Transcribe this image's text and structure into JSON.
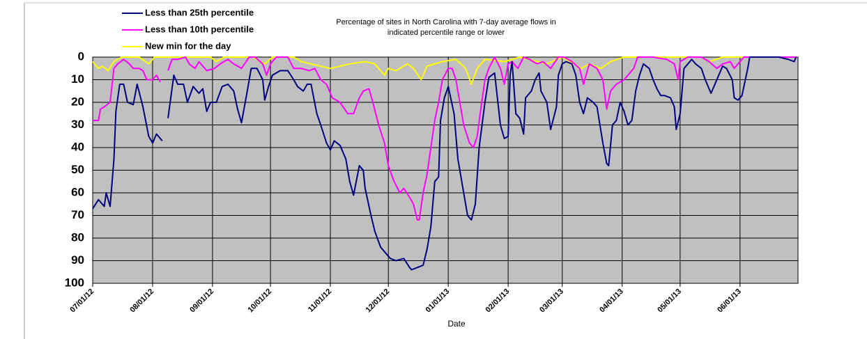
{
  "chart_data": {
    "type": "line",
    "title": [
      "Percentage of sites in North Carolina  with 7-day average  flows in",
      "indicated percentile range or lower"
    ],
    "x_label": "Date",
    "xlim": [
      "07/01/12",
      "07/01/13"
    ],
    "xticks": [
      "07/01/12",
      "08/01/12",
      "09/01/12",
      "10/01/12",
      "11/01/12",
      "12/01/12",
      "01/01/13",
      "02/01/13",
      "03/01/13",
      "04/01/13",
      "05/01/13",
      "06/01/13"
    ],
    "ylim": [
      0,
      100
    ],
    "y_reversed": true,
    "yticks": [
      0,
      10,
      20,
      30,
      40,
      50,
      60,
      70,
      80,
      90,
      100
    ],
    "grid": true,
    "plot_background": "#c0c0c0",
    "legend": "top-left",
    "series": [
      {
        "name": "Less than 25th percentile",
        "color": "#000080",
        "x": [
          "07/01/12",
          "07/04/12",
          "07/07/12",
          "07/08/12",
          "07/10/12",
          "07/12/12",
          "07/13/12",
          "07/15/12",
          "07/17/12",
          "07/19/12",
          "07/22/12",
          "07/24/12",
          "07/27/12",
          "07/30/12",
          "08/01/12",
          "08/03/12",
          "08/06/12",
          "08/08/12",
          "08/09/12",
          "08/12/12",
          "08/14/12",
          "08/17/12",
          "08/19/12",
          "08/22/12",
          "08/25/12",
          "08/27/12",
          "08/29/12",
          "08/31/12",
          "09/03/12",
          "09/06/12",
          "09/09/12",
          "09/12/12",
          "09/14/12",
          "09/16/12",
          "09/19/12",
          "09/21/12",
          "09/24/12",
          "09/27/12",
          "09/28/12",
          "09/30/12",
          "10/02/12",
          "10/06/12",
          "10/10/12",
          "10/13/12",
          "10/15/12",
          "10/18/12",
          "10/20/12",
          "10/22/12",
          "10/25/12",
          "10/27/12",
          "10/30/12",
          "11/01/12",
          "11/03/12",
          "11/06/12",
          "11/09/12",
          "11/11/12",
          "11/13/12",
          "11/16/12",
          "11/18/12",
          "11/19/12",
          "11/22/12",
          "11/24/12",
          "11/27/12",
          "11/30/12",
          "12/02/12",
          "12/05/12",
          "12/09/12",
          "12/12/12",
          "12/13/12",
          "12/16/12",
          "12/19/12",
          "12/21/12",
          "12/23/12",
          "12/25/12",
          "12/27/12",
          "12/28/12",
          "12/30/12",
          "01/01/13",
          "01/04/13",
          "01/06/13",
          "01/09/13",
          "01/11/13",
          "01/13/13",
          "01/15/13",
          "01/17/13",
          "01/20/13",
          "01/22/13",
          "01/25/13",
          "01/28/13",
          "01/30/13",
          "02/01/13",
          "02/02/13",
          "02/03/13",
          "02/05/13",
          "02/07/13",
          "02/09/13",
          "02/10/13",
          "02/13/13",
          "02/15/13",
          "02/17/13",
          "02/18/13",
          "02/21/13",
          "02/23/13",
          "02/26/13",
          "02/27/13",
          "03/01/13",
          "03/03/13",
          "03/06/13",
          "03/08/13",
          "03/10/13",
          "03/12/13",
          "03/14/13",
          "03/17/13",
          "03/19/13",
          "03/22/13",
          "03/24/13",
          "03/25/13",
          "03/27/13",
          "03/29/13",
          "03/31/13",
          "04/02/13",
          "04/04/13",
          "04/06/13",
          "04/08/13",
          "04/10/13",
          "04/12/13",
          "04/15/13",
          "04/17/13",
          "04/19/13",
          "04/21/13",
          "04/23/13",
          "04/26/13",
          "04/28/13",
          "04/29/13",
          "05/01/13",
          "05/03/13",
          "05/05/13",
          "05/07/13",
          "05/09/13",
          "05/12/13",
          "05/14/13",
          "05/17/13",
          "05/19/13",
          "05/21/13",
          "05/23/13",
          "05/25/13",
          "05/28/13",
          "05/29/13",
          "05/31/13",
          "06/02/13",
          "06/05/13",
          "06/06/13",
          "06/21/13",
          "06/26/13",
          "06/29/13",
          "06/30/13"
        ],
        "values": [
          67,
          63,
          66,
          60,
          66,
          45,
          24,
          12,
          12,
          20,
          21,
          12,
          22,
          35,
          38,
          34,
          37,
          null,
          27,
          8,
          12,
          12,
          20,
          13,
          16,
          14,
          24,
          20,
          20,
          13,
          12,
          15,
          23,
          29,
          15,
          5,
          5,
          10,
          19,
          13,
          8,
          6,
          6,
          10,
          13,
          15,
          12,
          12,
          25,
          30,
          38,
          41,
          37,
          39,
          45,
          55,
          61,
          48,
          50,
          58,
          70,
          77,
          84,
          87,
          89,
          90,
          89,
          93,
          94,
          93,
          92,
          85,
          75,
          55,
          53,
          28,
          18,
          13,
          25,
          45,
          60,
          70,
          72,
          65,
          40,
          20,
          9,
          7,
          30,
          36,
          35,
          8,
          2,
          25,
          27,
          34,
          18,
          15,
          10,
          7,
          15,
          20,
          32,
          22,
          8,
          3,
          2,
          3,
          8,
          20,
          25,
          18,
          20,
          22,
          38,
          47,
          48,
          30,
          28,
          20,
          24,
          30,
          28,
          15,
          8,
          3,
          5,
          10,
          14,
          17,
          17,
          18,
          22,
          32,
          25,
          5,
          3,
          1,
          3,
          5,
          10,
          16,
          12,
          8,
          4,
          5,
          10,
          18,
          19,
          17,
          5,
          0,
          0,
          1,
          2,
          0
        ]
      },
      {
        "name": "Less than 10th percentile",
        "color": "#ff00ff",
        "x": [
          "07/01/12",
          "07/04/12",
          "07/05/12",
          "07/07/12",
          "07/10/12",
          "07/12/12",
          "07/14/12",
          "07/17/12",
          "07/20/12",
          "07/22/12",
          "07/25/12",
          "07/27/12",
          "07/29/12",
          "08/01/12",
          "08/03/12",
          "08/05/12",
          "08/07/12",
          "08/09/12",
          "08/11/12",
          "08/14/12",
          "08/18/12",
          "08/20/12",
          "08/23/12",
          "08/25/12",
          "08/29/12",
          "09/02/12",
          "09/05/12",
          "09/09/12",
          "09/12/12",
          "09/16/12",
          "09/20/12",
          "09/23/12",
          "09/27/12",
          "09/29/12",
          "10/01/12",
          "10/04/12",
          "10/10/12",
          "10/13/12",
          "10/17/12",
          "10/21/12",
          "10/24/12",
          "10/27/12",
          "10/30/12",
          "11/02/12",
          "11/06/12",
          "11/10/12",
          "11/13/12",
          "11/16/12",
          "11/18/12",
          "11/21/12",
          "11/23/12",
          "11/26/12",
          "11/29/12",
          "12/01/12",
          "12/04/12",
          "12/07/12",
          "12/09/12",
          "12/12/12",
          "12/14/12",
          "12/16/12",
          "12/17/12",
          "12/19/12",
          "12/21/12",
          "12/23/12",
          "12/25/12",
          "12/27/12",
          "12/29/12",
          "01/01/13",
          "01/03/13",
          "01/05/13",
          "01/07/13",
          "01/09/13",
          "01/12/13",
          "01/14/13",
          "01/16/13",
          "01/18/13",
          "01/20/13",
          "01/22/13",
          "01/25/13",
          "01/28/13",
          "01/30/13",
          "02/01/13",
          "02/03/13",
          "02/06/13",
          "02/09/13",
          "02/12/13",
          "02/16/13",
          "02/19/13",
          "02/23/13",
          "02/27/13",
          "03/02/13",
          "03/06/13",
          "03/10/13",
          "03/12/13",
          "03/15/13",
          "03/19/13",
          "03/22/13",
          "03/24/13",
          "03/26/13",
          "03/29/13",
          "04/02/13",
          "04/04/13",
          "04/07/13",
          "04/09/13",
          "04/17/13",
          "04/24/13",
          "04/28/13",
          "04/30/13",
          "05/01/13",
          "05/05/13",
          "05/12/13",
          "05/16/13",
          "05/20/13",
          "05/23/13",
          "05/27/13",
          "05/29/13",
          "05/31/13",
          "06/03/13",
          "06/30/13"
        ],
        "values": [
          28,
          28,
          23,
          22,
          20,
          5,
          3,
          1,
          3,
          5,
          5,
          6,
          10,
          10,
          8,
          11,
          null,
          6,
          1,
          1,
          0,
          3,
          5,
          2,
          6,
          5,
          3,
          1,
          3,
          5,
          0,
          0,
          3,
          8,
          3,
          0,
          0,
          5,
          5,
          6,
          5,
          10,
          12,
          18,
          20,
          25,
          25,
          18,
          15,
          14,
          20,
          30,
          38,
          48,
          55,
          60,
          58,
          62,
          65,
          72,
          72,
          60,
          52,
          40,
          28,
          20,
          10,
          5,
          5,
          10,
          20,
          30,
          38,
          40,
          35,
          22,
          10,
          5,
          0,
          5,
          12,
          3,
          2,
          5,
          0,
          1,
          3,
          2,
          5,
          0,
          0,
          2,
          5,
          12,
          3,
          5,
          10,
          23,
          15,
          12,
          10,
          8,
          5,
          0,
          0,
          1,
          3,
          10,
          2,
          0,
          0,
          2,
          5,
          3,
          2,
          5,
          3,
          0,
          0
        ]
      },
      {
        "name": "New min for the day",
        "color": "#ffff00",
        "x": [
          "07/01/12",
          "07/04/12",
          "07/06/12",
          "07/09/12",
          "07/12/12",
          "07/16/12",
          "07/25/12",
          "07/30/12",
          "08/02/12",
          "08/31/12",
          "09/03/12",
          "09/07/12",
          "09/22/12",
          "09/28/12",
          "10/02/12",
          "10/13/12",
          "10/17/12",
          "10/22/12",
          "11/01/12",
          "11/06/12",
          "11/11/12",
          "11/19/12",
          "11/24/12",
          "11/29/12",
          "12/01/12",
          "12/05/12",
          "12/11/12",
          "12/14/12",
          "12/18/12",
          "12/21/12",
          "12/29/12",
          "01/05/13",
          "01/10/13",
          "01/13/13",
          "01/16/13",
          "01/20/13",
          "01/30/13",
          "02/07/13",
          "02/21/13",
          "03/01/13",
          "03/11/13",
          "03/15/13",
          "03/21/13",
          "03/26/13",
          "04/02/13",
          "05/12/13",
          "05/16/13",
          "05/23/13",
          "06/30/13"
        ],
        "values": [
          2,
          5,
          4,
          6,
          2,
          0,
          0,
          3,
          0,
          0,
          2,
          0,
          0,
          3,
          0,
          0,
          2,
          3,
          5,
          4,
          3,
          2,
          3,
          8,
          5,
          6,
          3,
          5,
          10,
          4,
          2,
          1,
          5,
          12,
          5,
          1,
          2,
          0,
          3,
          0,
          5,
          3,
          5,
          2,
          0,
          0,
          2,
          0,
          0
        ]
      }
    ]
  }
}
